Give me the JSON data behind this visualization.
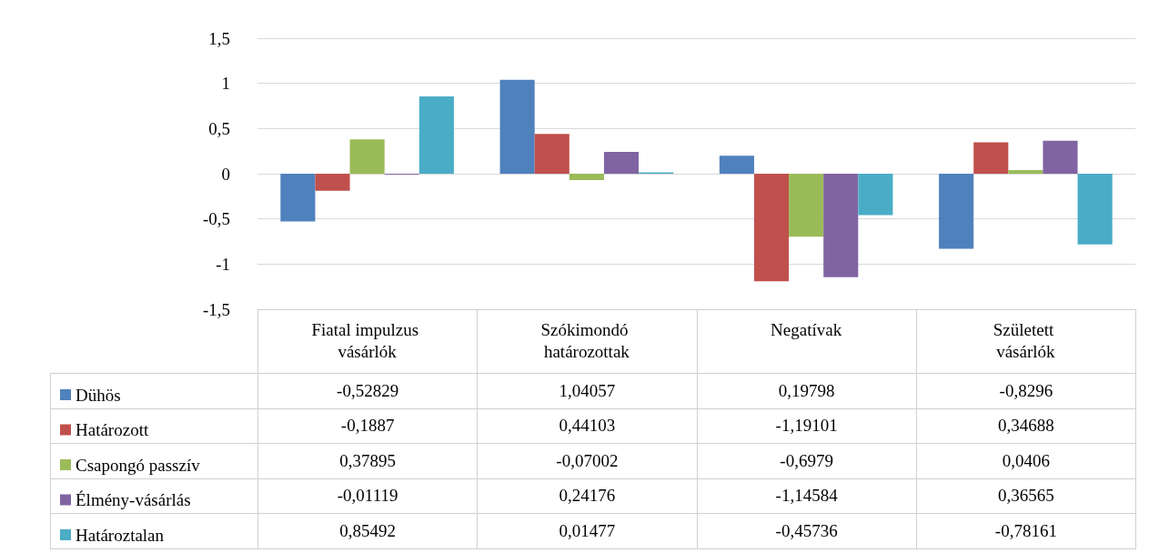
{
  "chart_data": {
    "type": "bar",
    "categories": [
      "Fiatal impulzus vásárlók",
      "Szókimondó határozottak",
      "Negatívak",
      "Született vásárlók"
    ],
    "series": [
      {
        "name": "Dühös",
        "color": "#4f81bd",
        "values": [
          -0.52829,
          1.04057,
          0.19798,
          -0.8296
        ],
        "value_labels": [
          "-0,52829",
          "1,04057",
          "0,19798",
          "-0,8296"
        ]
      },
      {
        "name": "Határozott",
        "color": "#c0504d",
        "values": [
          -0.1887,
          0.44103,
          -1.19101,
          0.34688
        ],
        "value_labels": [
          "-0,1887",
          "0,44103",
          "-1,19101",
          "0,34688"
        ]
      },
      {
        "name": "Csapongó passzív",
        "color": "#9bbb59",
        "values": [
          0.37895,
          -0.07002,
          -0.6979,
          0.0406
        ],
        "value_labels": [
          "0,37895",
          "-0,07002",
          "-0,6979",
          "0,0406"
        ]
      },
      {
        "name": "Élmény-vásárlás",
        "color": "#8064a2",
        "values": [
          -0.01119,
          0.24176,
          -1.14584,
          0.36565
        ],
        "value_labels": [
          "-0,01119",
          "0,24176",
          "-1,14584",
          "0,36565"
        ]
      },
      {
        "name": "Határoztalan",
        "color": "#4bacc6",
        "values": [
          0.85492,
          0.01477,
          -0.45736,
          -0.78161
        ],
        "value_labels": [
          "0,85492",
          "0,01477",
          "-0,45736",
          "-0,78161"
        ]
      }
    ],
    "ylim": [
      -1.5,
      1.5
    ],
    "yticks": [
      {
        "value": -1.5,
        "label": "-1,5"
      },
      {
        "value": -1,
        "label": "-1"
      },
      {
        "value": -0.5,
        "label": "-0,5"
      },
      0,
      {
        "value": 0.5,
        "label": "0,5"
      },
      1,
      {
        "value": 1.5,
        "label": "1,5"
      }
    ],
    "grid": "y",
    "legend": "bottom left"
  }
}
